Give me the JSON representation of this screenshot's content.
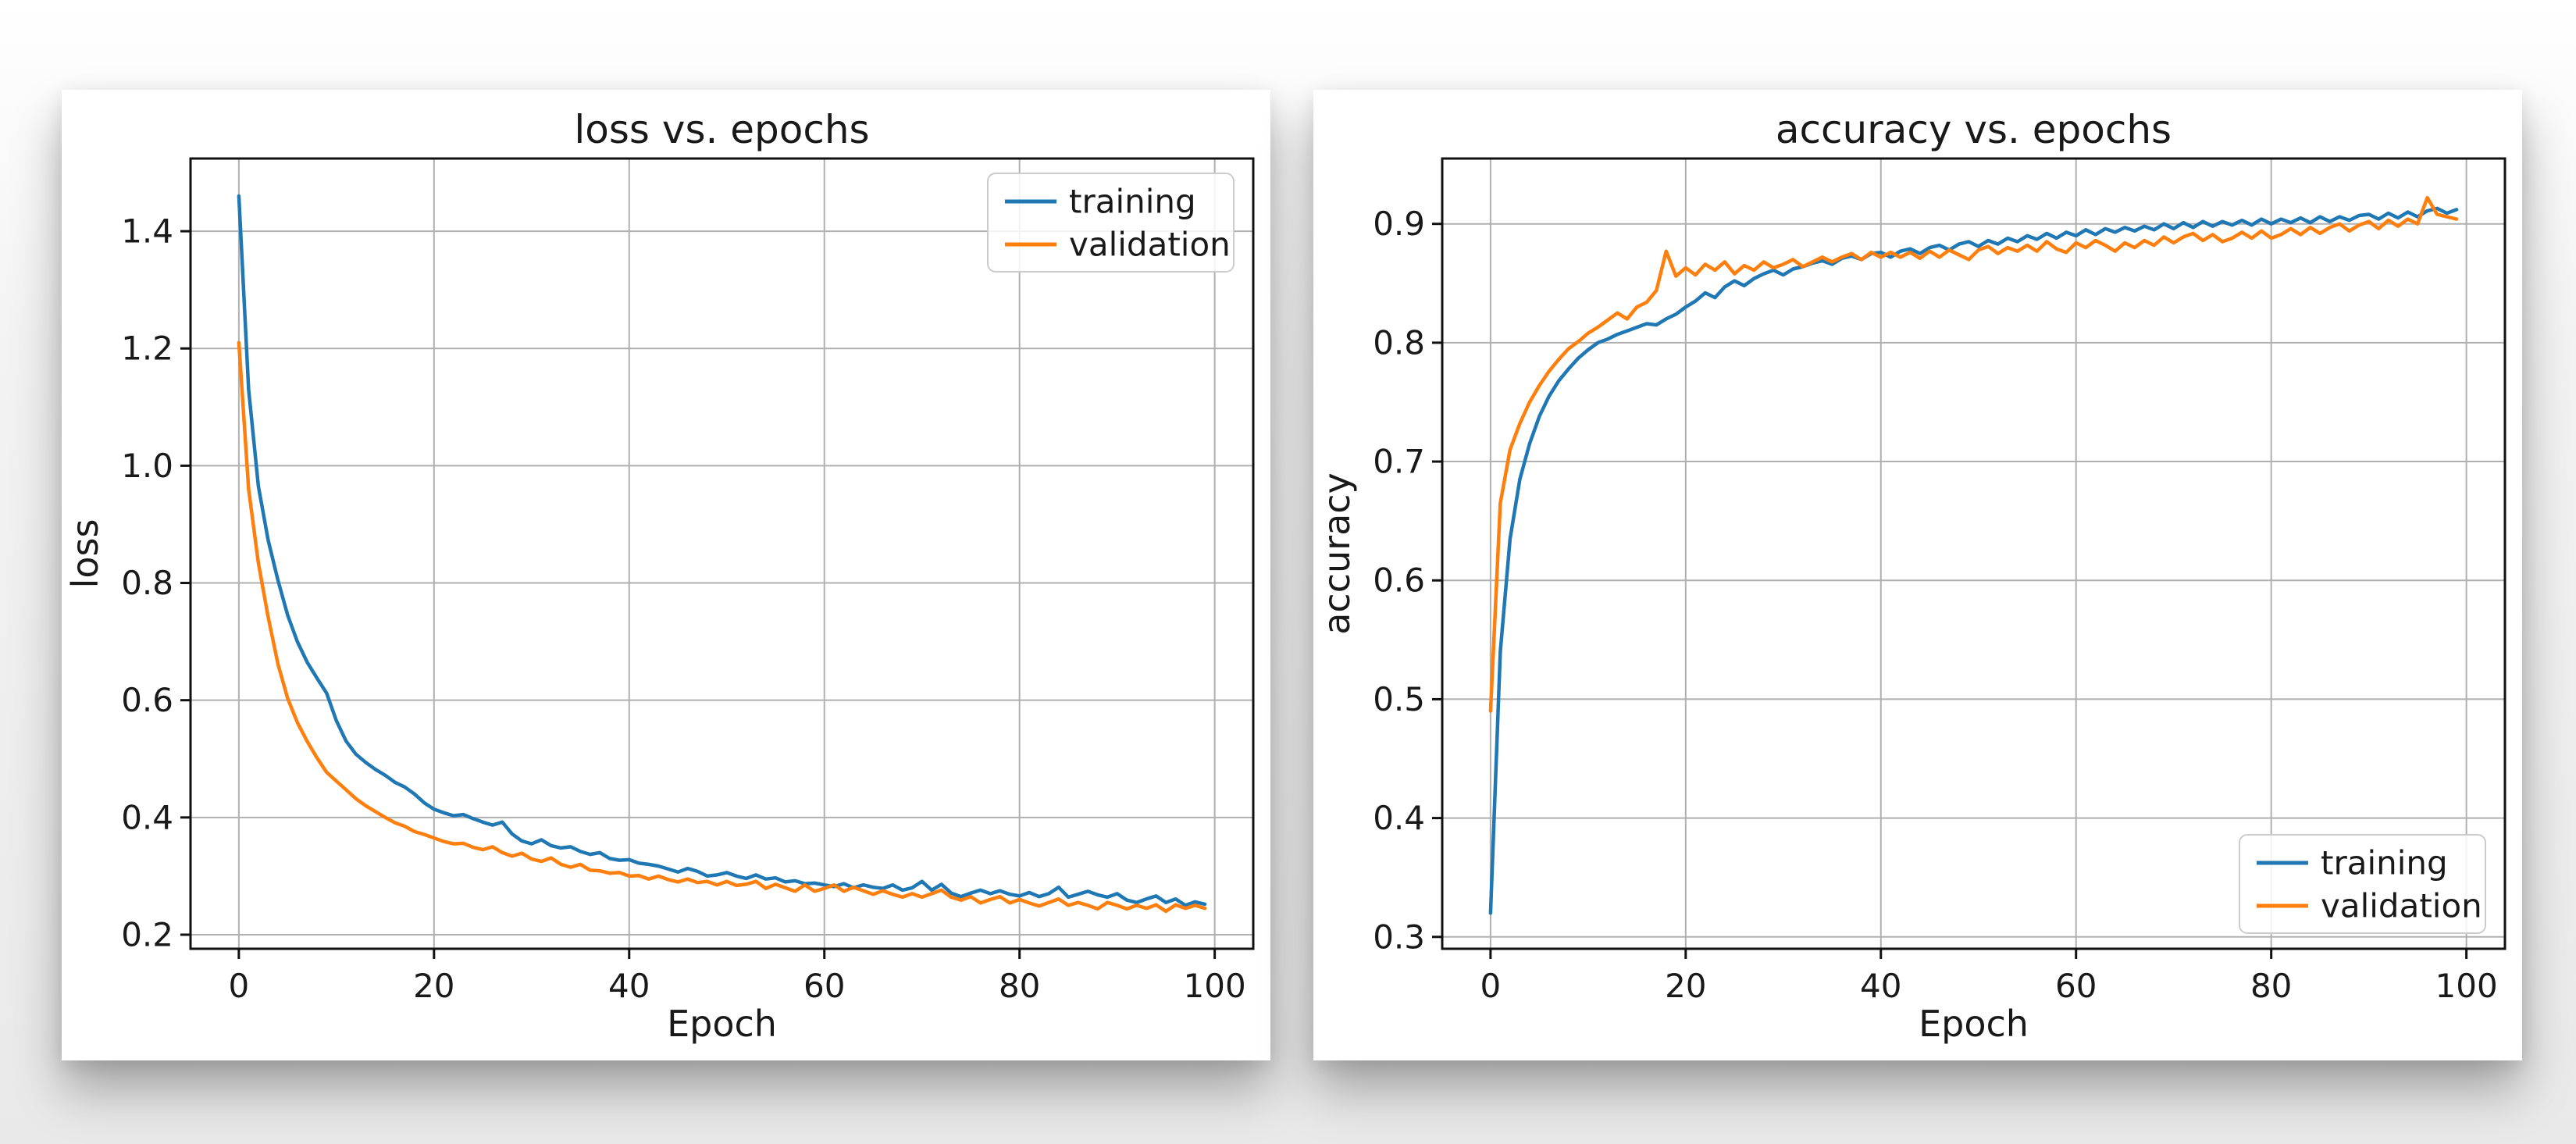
{
  "page": {
    "background_top": "#ffffff",
    "background_bottom": "#e9e9e9",
    "card_background": "#ffffff",
    "grid_color": "#b0b0b0",
    "spine_color": "#111111",
    "text_color": "#191919"
  },
  "chart_data": [
    {
      "type": "line",
      "title": "loss vs. epochs",
      "xlabel": "Epoch",
      "ylabel": "loss",
      "grid": true,
      "legend_position": "upper right",
      "xlim": [
        -4.95,
        103.95
      ],
      "ylim": [
        0.176,
        1.524
      ],
      "x_ticks": [
        0,
        20,
        40,
        60,
        80,
        100
      ],
      "y_ticks": [
        0.2,
        0.4,
        0.6,
        0.8,
        1.0,
        1.2,
        1.4
      ],
      "x": [
        0,
        1,
        2,
        3,
        4,
        5,
        6,
        7,
        8,
        9,
        10,
        11,
        12,
        13,
        14,
        15,
        16,
        17,
        18,
        19,
        20,
        21,
        22,
        23,
        24,
        25,
        26,
        27,
        28,
        29,
        30,
        31,
        32,
        33,
        34,
        35,
        36,
        37,
        38,
        39,
        40,
        41,
        42,
        43,
        44,
        45,
        46,
        47,
        48,
        49,
        50,
        51,
        52,
        53,
        54,
        55,
        56,
        57,
        58,
        59,
        60,
        61,
        62,
        63,
        64,
        65,
        66,
        67,
        68,
        69,
        70,
        71,
        72,
        73,
        74,
        75,
        76,
        77,
        78,
        79,
        80,
        81,
        82,
        83,
        84,
        85,
        86,
        87,
        88,
        89,
        90,
        91,
        92,
        93,
        94,
        95,
        96,
        97,
        98,
        99
      ],
      "series": [
        {
          "name": "training",
          "color": "#1f77b4",
          "values": [
            1.46,
            1.13,
            0.965,
            0.873,
            0.805,
            0.745,
            0.7,
            0.665,
            0.638,
            0.612,
            0.565,
            0.53,
            0.508,
            0.494,
            0.482,
            0.472,
            0.46,
            0.452,
            0.44,
            0.425,
            0.414,
            0.408,
            0.403,
            0.405,
            0.398,
            0.392,
            0.387,
            0.392,
            0.372,
            0.36,
            0.355,
            0.362,
            0.352,
            0.348,
            0.35,
            0.342,
            0.337,
            0.34,
            0.33,
            0.327,
            0.328,
            0.322,
            0.32,
            0.317,
            0.312,
            0.307,
            0.313,
            0.308,
            0.3,
            0.302,
            0.306,
            0.3,
            0.296,
            0.302,
            0.295,
            0.297,
            0.29,
            0.292,
            0.287,
            0.288,
            0.285,
            0.282,
            0.287,
            0.28,
            0.285,
            0.281,
            0.279,
            0.285,
            0.276,
            0.28,
            0.291,
            0.276,
            0.286,
            0.271,
            0.265,
            0.271,
            0.276,
            0.27,
            0.275,
            0.269,
            0.266,
            0.272,
            0.265,
            0.27,
            0.281,
            0.264,
            0.269,
            0.274,
            0.268,
            0.264,
            0.27,
            0.259,
            0.255,
            0.261,
            0.266,
            0.255,
            0.261,
            0.25,
            0.256,
            0.252
          ]
        },
        {
          "name": "validation",
          "color": "#ff7f0e",
          "values": [
            1.21,
            0.96,
            0.834,
            0.742,
            0.662,
            0.603,
            0.562,
            0.53,
            0.502,
            0.477,
            0.462,
            0.447,
            0.432,
            0.42,
            0.41,
            0.4,
            0.391,
            0.385,
            0.376,
            0.371,
            0.365,
            0.359,
            0.355,
            0.356,
            0.349,
            0.345,
            0.35,
            0.34,
            0.334,
            0.339,
            0.329,
            0.325,
            0.331,
            0.32,
            0.315,
            0.32,
            0.31,
            0.309,
            0.305,
            0.306,
            0.3,
            0.301,
            0.295,
            0.3,
            0.294,
            0.29,
            0.295,
            0.289,
            0.291,
            0.285,
            0.291,
            0.284,
            0.286,
            0.291,
            0.279,
            0.286,
            0.28,
            0.274,
            0.285,
            0.274,
            0.279,
            0.285,
            0.274,
            0.281,
            0.275,
            0.269,
            0.275,
            0.269,
            0.264,
            0.27,
            0.264,
            0.27,
            0.276,
            0.264,
            0.259,
            0.265,
            0.254,
            0.26,
            0.265,
            0.254,
            0.26,
            0.254,
            0.249,
            0.255,
            0.261,
            0.25,
            0.255,
            0.25,
            0.244,
            0.255,
            0.25,
            0.244,
            0.25,
            0.245,
            0.251,
            0.24,
            0.251,
            0.245,
            0.25,
            0.245
          ]
        }
      ]
    },
    {
      "type": "line",
      "title": "accuracy vs. epochs",
      "xlabel": "Epoch",
      "ylabel": "accuracy",
      "grid": true,
      "legend_position": "lower right",
      "xlim": [
        -4.95,
        103.95
      ],
      "ylim": [
        0.29,
        0.955
      ],
      "x_ticks": [
        0,
        20,
        40,
        60,
        80,
        100
      ],
      "y_ticks": [
        0.3,
        0.4,
        0.5,
        0.6,
        0.7,
        0.8,
        0.9
      ],
      "x": [
        0,
        1,
        2,
        3,
        4,
        5,
        6,
        7,
        8,
        9,
        10,
        11,
        12,
        13,
        14,
        15,
        16,
        17,
        18,
        19,
        20,
        21,
        22,
        23,
        24,
        25,
        26,
        27,
        28,
        29,
        30,
        31,
        32,
        33,
        34,
        35,
        36,
        37,
        38,
        39,
        40,
        41,
        42,
        43,
        44,
        45,
        46,
        47,
        48,
        49,
        50,
        51,
        52,
        53,
        54,
        55,
        56,
        57,
        58,
        59,
        60,
        61,
        62,
        63,
        64,
        65,
        66,
        67,
        68,
        69,
        70,
        71,
        72,
        73,
        74,
        75,
        76,
        77,
        78,
        79,
        80,
        81,
        82,
        83,
        84,
        85,
        86,
        87,
        88,
        89,
        90,
        91,
        92,
        93,
        94,
        95,
        96,
        97,
        98,
        99
      ],
      "series": [
        {
          "name": "training",
          "color": "#1f77b4",
          "values": [
            0.32,
            0.54,
            0.635,
            0.685,
            0.715,
            0.738,
            0.755,
            0.768,
            0.778,
            0.787,
            0.794,
            0.8,
            0.803,
            0.807,
            0.81,
            0.813,
            0.816,
            0.815,
            0.82,
            0.824,
            0.83,
            0.835,
            0.842,
            0.838,
            0.847,
            0.852,
            0.848,
            0.854,
            0.858,
            0.861,
            0.857,
            0.862,
            0.864,
            0.867,
            0.869,
            0.866,
            0.871,
            0.873,
            0.87,
            0.875,
            0.876,
            0.872,
            0.877,
            0.879,
            0.875,
            0.88,
            0.882,
            0.878,
            0.883,
            0.885,
            0.881,
            0.886,
            0.883,
            0.888,
            0.885,
            0.89,
            0.887,
            0.892,
            0.888,
            0.893,
            0.89,
            0.895,
            0.891,
            0.896,
            0.893,
            0.897,
            0.894,
            0.898,
            0.895,
            0.9,
            0.896,
            0.901,
            0.897,
            0.902,
            0.898,
            0.902,
            0.899,
            0.903,
            0.899,
            0.904,
            0.9,
            0.904,
            0.901,
            0.905,
            0.901,
            0.906,
            0.902,
            0.906,
            0.903,
            0.907,
            0.908,
            0.904,
            0.909,
            0.905,
            0.91,
            0.906,
            0.911,
            0.913,
            0.909,
            0.912
          ]
        },
        {
          "name": "validation",
          "color": "#ff7f0e",
          "values": [
            0.49,
            0.665,
            0.71,
            0.732,
            0.75,
            0.764,
            0.776,
            0.786,
            0.795,
            0.801,
            0.808,
            0.813,
            0.819,
            0.825,
            0.82,
            0.83,
            0.834,
            0.844,
            0.877,
            0.856,
            0.863,
            0.857,
            0.866,
            0.861,
            0.868,
            0.858,
            0.865,
            0.861,
            0.868,
            0.863,
            0.866,
            0.87,
            0.864,
            0.868,
            0.872,
            0.868,
            0.872,
            0.875,
            0.87,
            0.876,
            0.872,
            0.876,
            0.872,
            0.876,
            0.871,
            0.877,
            0.872,
            0.878,
            0.874,
            0.87,
            0.878,
            0.881,
            0.875,
            0.88,
            0.877,
            0.882,
            0.877,
            0.885,
            0.879,
            0.876,
            0.884,
            0.88,
            0.886,
            0.882,
            0.877,
            0.884,
            0.88,
            0.886,
            0.882,
            0.889,
            0.884,
            0.889,
            0.892,
            0.886,
            0.891,
            0.885,
            0.888,
            0.893,
            0.888,
            0.894,
            0.888,
            0.891,
            0.896,
            0.891,
            0.897,
            0.892,
            0.897,
            0.9,
            0.894,
            0.899,
            0.902,
            0.896,
            0.903,
            0.898,
            0.904,
            0.9,
            0.922,
            0.908,
            0.906,
            0.904
          ]
        }
      ]
    }
  ]
}
